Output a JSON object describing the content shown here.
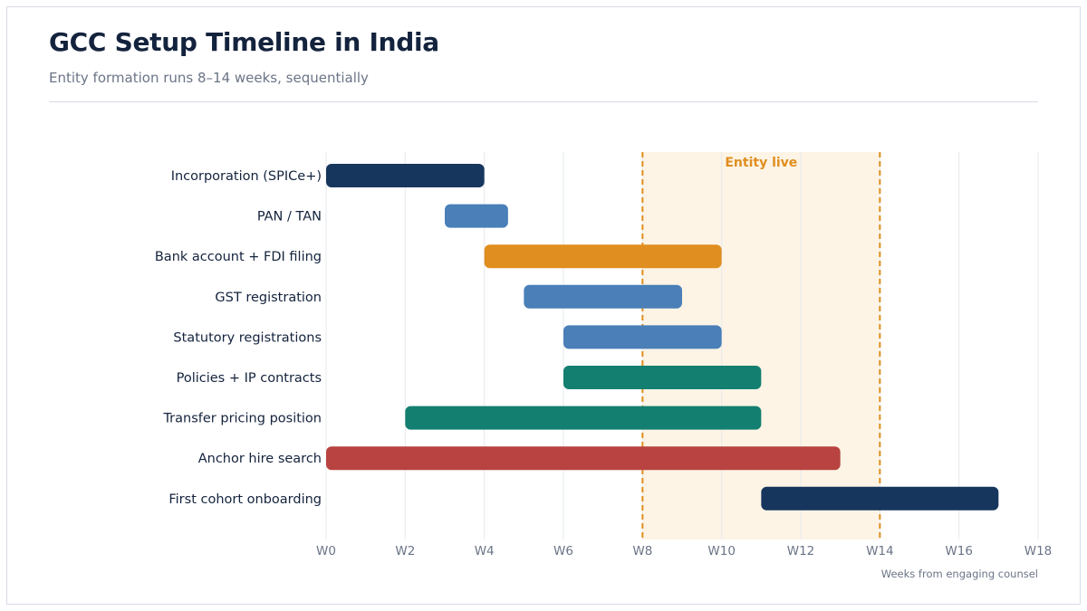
{
  "chart_data": {
    "type": "gantt",
    "title": "GCC Setup Timeline in India",
    "subtitle": "Entity formation runs 8–14 weeks, sequentially",
    "xlabel": "Weeks from engaging counsel",
    "xlim": [
      0,
      18
    ],
    "x_ticks": [
      0,
      2,
      4,
      6,
      8,
      10,
      12,
      14,
      16,
      18
    ],
    "x_tick_labels": [
      "W0",
      "W2",
      "W4",
      "W6",
      "W8",
      "W10",
      "W12",
      "W14",
      "W16",
      "W18"
    ],
    "grid": true,
    "highlight_band": {
      "label": "Entity live",
      "start": 8,
      "end": 14,
      "color": "#e08e1f",
      "fill": "#fdf4e5"
    },
    "tasks": [
      {
        "label": "Incorporation (SPICe+)",
        "start": 0,
        "end": 4,
        "color": "#17365d"
      },
      {
        "label": "PAN / TAN",
        "start": 3,
        "end": 4.6,
        "color": "#4a7fb8"
      },
      {
        "label": "Bank account + FDI filing",
        "start": 4,
        "end": 10,
        "color": "#e08e1f"
      },
      {
        "label": "GST registration",
        "start": 5,
        "end": 9,
        "color": "#4a7fb8"
      },
      {
        "label": "Statutory registrations",
        "start": 6,
        "end": 10,
        "color": "#4a7fb8"
      },
      {
        "label": "Policies + IP contracts",
        "start": 6,
        "end": 11,
        "color": "#137f70"
      },
      {
        "label": "Transfer pricing position",
        "start": 2,
        "end": 11,
        "color": "#137f70"
      },
      {
        "label": "Anchor hire search",
        "start": 0,
        "end": 13,
        "color": "#b84340"
      },
      {
        "label": "First cohort onboarding",
        "start": 11,
        "end": 17,
        "color": "#17365d"
      }
    ]
  }
}
